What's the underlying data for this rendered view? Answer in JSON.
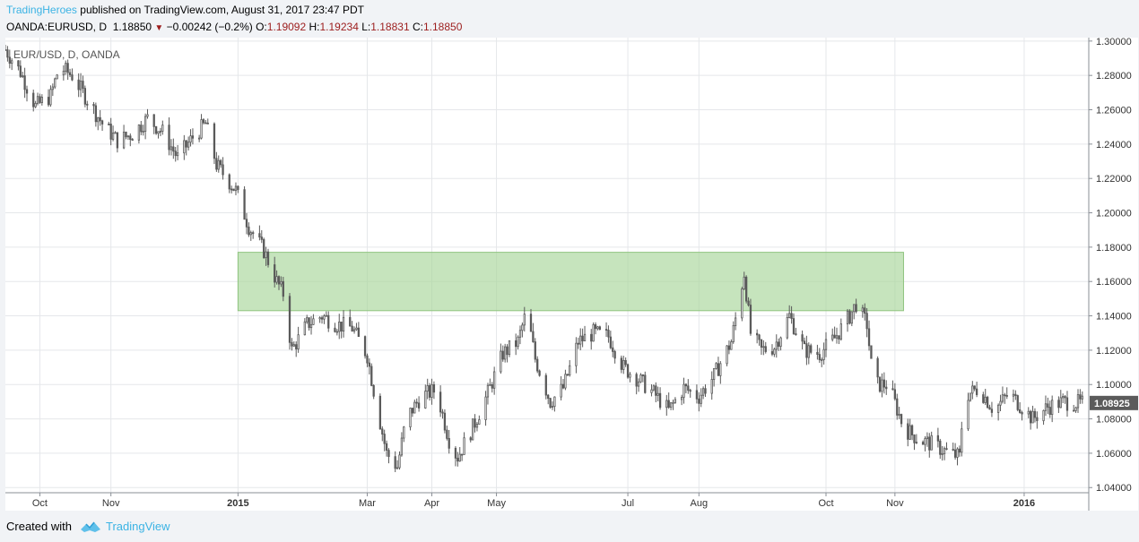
{
  "header": {
    "author": "TradingHeroes",
    "published_text": "published on TradingView.com, August 31, 2017 23:47 PDT",
    "symbol": "OANDA:EURUSD, D",
    "last": "1.18850",
    "change": "−0.00242 (−0.2%)",
    "o_label": "O:",
    "o_value": "1.19092",
    "h_label": "H:",
    "h_value": "1.19234",
    "l_label": "L:",
    "l_value": "1.18831",
    "c_label": "C:",
    "c_value": "1.18850"
  },
  "footer": {
    "created_with": "Created with",
    "brand": "TradingView"
  },
  "colors": {
    "candle": "#5a5a5a",
    "zone_fill": "#a8d59a",
    "zone_stroke": "#8fc47f",
    "grid": "#e5e7ea",
    "accent": "#3bb3e4"
  },
  "chart_data": {
    "type": "candlestick",
    "title": "EUR/USD, D, OANDA",
    "price_axis": {
      "ticks": [
        "1.30000",
        "1.28000",
        "1.26000",
        "1.24000",
        "1.22000",
        "1.20000",
        "1.18000",
        "1.16000",
        "1.14000",
        "1.12000",
        "1.10000",
        "1.08000",
        "1.06000",
        "1.04000"
      ],
      "range": [
        1.037,
        1.302
      ],
      "last_price_label": "1.08925",
      "last_price": 1.08925
    },
    "time_axis": {
      "labels": [
        "Oct",
        "Nov",
        "2015",
        "Mar",
        "Apr",
        "May",
        "Jul",
        "Aug",
        "Oct",
        "Nov",
        "2016"
      ],
      "label_dates": [
        "2014-10-01",
        "2014-11-03",
        "2015-01-01",
        "2015-03-02",
        "2015-04-01",
        "2015-05-01",
        "2015-07-01",
        "2015-08-03",
        "2015-10-01",
        "2015-11-02",
        "2016-01-01"
      ],
      "bold_labels": [
        "2015",
        "2016"
      ],
      "start": "2014-09-15",
      "end": "2016-01-31"
    },
    "grid": true,
    "zone": {
      "start": "2015-01-01",
      "end": "2015-11-06",
      "low": 1.143,
      "high": 1.177
    },
    "close_path": [
      [
        "2014-09-15",
        1.295
      ],
      [
        "2014-09-22",
        1.282
      ],
      [
        "2014-09-29",
        1.262
      ],
      [
        "2014-10-06",
        1.268
      ],
      [
        "2014-10-10",
        1.285
      ],
      [
        "2014-10-16",
        1.28
      ],
      [
        "2014-10-23",
        1.266
      ],
      [
        "2014-10-30",
        1.252
      ],
      [
        "2014-11-06",
        1.242
      ],
      [
        "2014-11-13",
        1.246
      ],
      [
        "2014-11-20",
        1.255
      ],
      [
        "2014-11-27",
        1.247
      ],
      [
        "2014-12-04",
        1.232
      ],
      [
        "2014-12-11",
        1.244
      ],
      [
        "2014-12-17",
        1.252
      ],
      [
        "2014-12-22",
        1.228
      ],
      [
        "2014-12-31",
        1.213
      ],
      [
        "2015-01-06",
        1.192
      ],
      [
        "2015-01-13",
        1.178
      ],
      [
        "2015-01-19",
        1.16
      ],
      [
        "2015-01-22",
        1.153
      ],
      [
        "2015-01-26",
        1.12
      ],
      [
        "2015-02-02",
        1.135
      ],
      [
        "2015-02-09",
        1.14
      ],
      [
        "2015-02-16",
        1.135
      ],
      [
        "2015-02-23",
        1.133
      ],
      [
        "2015-03-02",
        1.117
      ],
      [
        "2015-03-06",
        1.09
      ],
      [
        "2015-03-11",
        1.06
      ],
      [
        "2015-03-16",
        1.052
      ],
      [
        "2015-03-20",
        1.08
      ],
      [
        "2015-03-27",
        1.093
      ],
      [
        "2015-04-03",
        1.097
      ],
      [
        "2015-04-10",
        1.063
      ],
      [
        "2015-04-13",
        1.058
      ],
      [
        "2015-04-20",
        1.075
      ],
      [
        "2015-04-27",
        1.095
      ],
      [
        "2015-05-04",
        1.118
      ],
      [
        "2015-05-11",
        1.125
      ],
      [
        "2015-05-15",
        1.143
      ],
      [
        "2015-05-19",
        1.115
      ],
      [
        "2015-05-26",
        1.09
      ],
      [
        "2015-06-01",
        1.098
      ],
      [
        "2015-06-08",
        1.125
      ],
      [
        "2015-06-15",
        1.13
      ],
      [
        "2015-06-22",
        1.128
      ],
      [
        "2015-06-29",
        1.11
      ],
      [
        "2015-07-06",
        1.103
      ],
      [
        "2015-07-13",
        1.095
      ],
      [
        "2015-07-20",
        1.085
      ],
      [
        "2015-07-27",
        1.098
      ],
      [
        "2015-08-03",
        1.093
      ],
      [
        "2015-08-10",
        1.105
      ],
      [
        "2015-08-18",
        1.125
      ],
      [
        "2015-08-24",
        1.165
      ],
      [
        "2015-08-27",
        1.13
      ],
      [
        "2015-09-01",
        1.12
      ],
      [
        "2015-09-07",
        1.122
      ],
      [
        "2015-09-14",
        1.14
      ],
      [
        "2015-09-21",
        1.12
      ],
      [
        "2015-09-28",
        1.118
      ],
      [
        "2015-10-05",
        1.127
      ],
      [
        "2015-10-12",
        1.14
      ],
      [
        "2015-10-15",
        1.147
      ],
      [
        "2015-10-20",
        1.135
      ],
      [
        "2015-10-23",
        1.1
      ],
      [
        "2015-10-30",
        1.1
      ],
      [
        "2015-11-06",
        1.075
      ],
      [
        "2015-11-13",
        1.068
      ],
      [
        "2015-11-20",
        1.065
      ],
      [
        "2015-11-27",
        1.06
      ],
      [
        "2015-12-02",
        1.058
      ],
      [
        "2015-12-04",
        1.093
      ],
      [
        "2015-12-11",
        1.098
      ],
      [
        "2015-12-18",
        1.085
      ],
      [
        "2015-12-25",
        1.095
      ],
      [
        "2016-01-05",
        1.08
      ],
      [
        "2016-01-12",
        1.087
      ],
      [
        "2016-01-19",
        1.09
      ],
      [
        "2016-01-28",
        1.089
      ]
    ]
  }
}
